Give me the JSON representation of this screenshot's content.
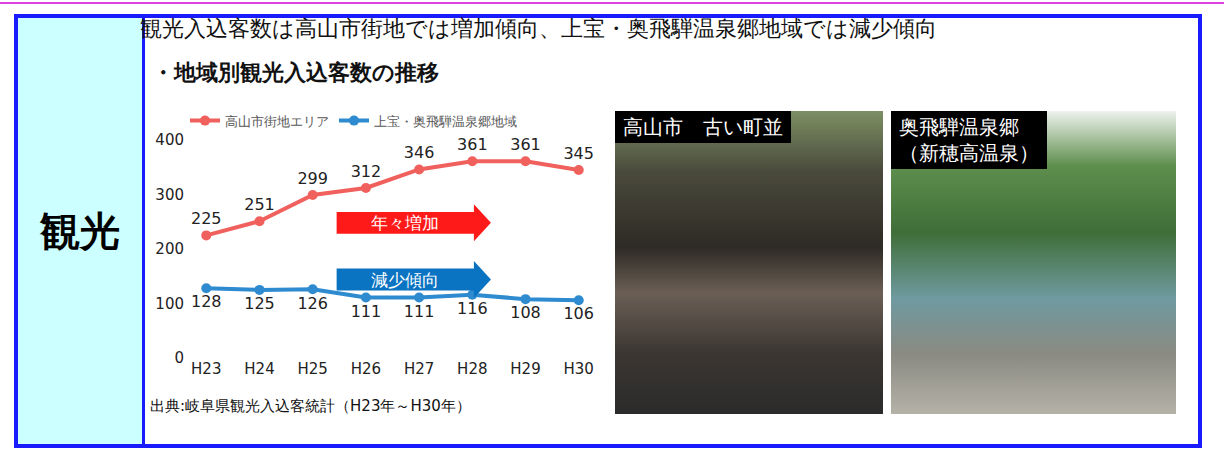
{
  "side_label": "観光",
  "headline": "観光入込客数は高山市街地では増加傾向、上宝・奥飛騨温泉郷地域では減少傾向",
  "chart_data": {
    "type": "line",
    "title": "・地域別観光入込客数の推移",
    "categories": [
      "H23",
      "H24",
      "H25",
      "H26",
      "H27",
      "H28",
      "H29",
      "H30"
    ],
    "series": [
      {
        "name": "高山市街地エリア",
        "color": "#f0605d",
        "values": [
          225,
          251,
          299,
          312,
          346,
          361,
          361,
          345
        ]
      },
      {
        "name": "上宝・奥飛騨温泉郷地域",
        "color": "#2e8bd0",
        "values": [
          128,
          125,
          126,
          111,
          111,
          116,
          108,
          106
        ]
      }
    ],
    "ylim": [
      0,
      400
    ],
    "yticks": [
      0,
      100,
      200,
      300,
      400
    ],
    "grid": false,
    "legend": "top",
    "data_labels": true,
    "marker": "circle",
    "annotations": [
      {
        "text": "年々増加",
        "color": "#ff1a1a"
      },
      {
        "text": "減少傾向",
        "color": "#0a73c2"
      }
    ]
  },
  "source": "出典:岐阜県観光入込客統計（H23年～H30年）",
  "photos": [
    {
      "caption": "高山市　古い町並"
    },
    {
      "caption": "奥飛騨温泉郷（新穂高温泉）"
    }
  ]
}
